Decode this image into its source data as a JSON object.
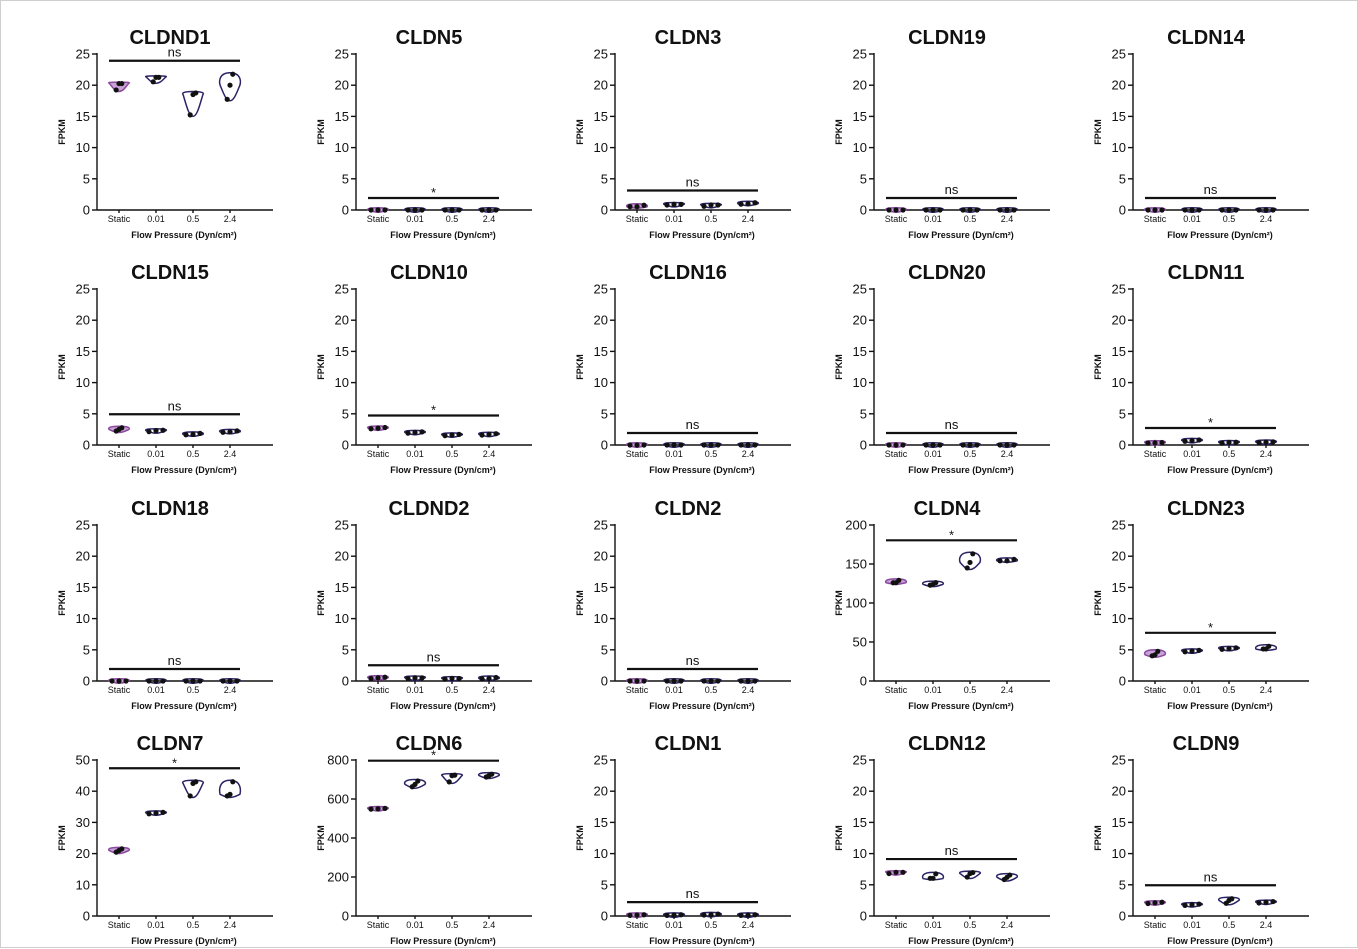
{
  "chart_data": [
    {
      "type": "violin",
      "title": "CLDND1",
      "ylabel": "FPKM",
      "xlabel": "Flow Pressure (Dyn/cm²)",
      "categories": [
        "Static",
        "0.01",
        "0.5",
        "2.4"
      ],
      "ylim": [
        0,
        25
      ],
      "yticks": [
        0,
        5,
        10,
        15,
        20,
        25
      ],
      "significance": "ns",
      "values": [
        [
          19,
          20.5,
          20.5
        ],
        [
          20.3,
          21.5,
          21.5
        ],
        [
          15,
          18.5,
          19
        ],
        [
          17.5,
          20,
          22
        ]
      ]
    },
    {
      "type": "violin",
      "title": "CLDN5",
      "ylabel": "FPKM",
      "xlabel": "Flow Pressure (Dyn/cm²)",
      "categories": [
        "Static",
        "0.01",
        "0.5",
        "2.4"
      ],
      "ylim": [
        0,
        25
      ],
      "yticks": [
        0,
        5,
        10,
        15,
        20,
        25
      ],
      "significance": "*",
      "values": [
        [
          0,
          0,
          0
        ],
        [
          0,
          0,
          0
        ],
        [
          0,
          0,
          0
        ],
        [
          0,
          0,
          0
        ]
      ]
    },
    {
      "type": "violin",
      "title": "CLDN3",
      "ylabel": "FPKM",
      "xlabel": "Flow Pressure (Dyn/cm²)",
      "categories": [
        "Static",
        "0.01",
        "0.5",
        "2.4"
      ],
      "ylim": [
        0,
        25
      ],
      "yticks": [
        0,
        5,
        10,
        15,
        20,
        25
      ],
      "significance": "ns",
      "values": [
        [
          0.3,
          0.5,
          1
        ],
        [
          0.8,
          0.9,
          0.9
        ],
        [
          0.6,
          0.8,
          0.8
        ],
        [
          0.9,
          1,
          1.2
        ]
      ]
    },
    {
      "type": "violin",
      "title": "CLDN19",
      "ylabel": "FPKM",
      "xlabel": "Flow Pressure (Dyn/cm²)",
      "categories": [
        "Static",
        "0.01",
        "0.5",
        "2.4"
      ],
      "ylim": [
        0,
        25
      ],
      "yticks": [
        0,
        5,
        10,
        15,
        20,
        25
      ],
      "significance": "ns",
      "values": [
        [
          0,
          0,
          0
        ],
        [
          0,
          0,
          0
        ],
        [
          0,
          0,
          0
        ],
        [
          0,
          0,
          0
        ]
      ]
    },
    {
      "type": "violin",
      "title": "CLDN14",
      "ylabel": "FPKM",
      "xlabel": "Flow Pressure (Dyn/cm²)",
      "categories": [
        "Static",
        "0.01",
        "0.5",
        "2.4"
      ],
      "ylim": [
        0,
        25
      ],
      "yticks": [
        0,
        5,
        10,
        15,
        20,
        25
      ],
      "significance": "ns",
      "values": [
        [
          0,
          0,
          0
        ],
        [
          0,
          0,
          0
        ],
        [
          0,
          0,
          0
        ],
        [
          0,
          0,
          0
        ]
      ]
    },
    {
      "type": "violin",
      "title": "CLDN15",
      "ylabel": "FPKM",
      "xlabel": "Flow Pressure (Dyn/cm²)",
      "categories": [
        "Static",
        "0.01",
        "0.5",
        "2.4"
      ],
      "ylim": [
        0,
        25
      ],
      "yticks": [
        0,
        5,
        10,
        15,
        20,
        25
      ],
      "significance": "ns",
      "values": [
        [
          2,
          2.5,
          3
        ],
        [
          2.1,
          2.3,
          2.4
        ],
        [
          1.6,
          1.7,
          1.9
        ],
        [
          1.9,
          2.1,
          2.4
        ]
      ]
    },
    {
      "type": "violin",
      "title": "CLDN10",
      "ylabel": "FPKM",
      "xlabel": "Flow Pressure (Dyn/cm²)",
      "categories": [
        "Static",
        "0.01",
        "0.5",
        "2.4"
      ],
      "ylim": [
        0,
        25
      ],
      "yticks": [
        0,
        5,
        10,
        15,
        20,
        25
      ],
      "significance": "*",
      "values": [
        [
          2.6,
          2.7,
          2.8
        ],
        [
          1.9,
          2,
          2.1
        ],
        [
          1.5,
          1.6,
          1.7
        ],
        [
          1.5,
          1.7,
          1.9
        ]
      ]
    },
    {
      "type": "violin",
      "title": "CLDN16",
      "ylabel": "FPKM",
      "xlabel": "Flow Pressure (Dyn/cm²)",
      "categories": [
        "Static",
        "0.01",
        "0.5",
        "2.4"
      ],
      "ylim": [
        0,
        25
      ],
      "yticks": [
        0,
        5,
        10,
        15,
        20,
        25
      ],
      "significance": "ns",
      "values": [
        [
          0,
          0,
          0
        ],
        [
          0,
          0,
          0
        ],
        [
          0,
          0,
          0
        ],
        [
          0,
          0,
          0
        ]
      ]
    },
    {
      "type": "violin",
      "title": "CLDN20",
      "ylabel": "FPKM",
      "xlabel": "Flow Pressure (Dyn/cm²)",
      "categories": [
        "Static",
        "0.01",
        "0.5",
        "2.4"
      ],
      "ylim": [
        0,
        25
      ],
      "yticks": [
        0,
        5,
        10,
        15,
        20,
        25
      ],
      "significance": "ns",
      "values": [
        [
          0,
          0,
          0
        ],
        [
          0,
          0,
          0
        ],
        [
          0,
          0,
          0
        ],
        [
          0,
          0,
          0
        ]
      ]
    },
    {
      "type": "violin",
      "title": "CLDN11",
      "ylabel": "FPKM",
      "xlabel": "Flow Pressure (Dyn/cm²)",
      "categories": [
        "Static",
        "0.01",
        "0.5",
        "2.4"
      ],
      "ylim": [
        0,
        25
      ],
      "yticks": [
        0,
        5,
        10,
        15,
        20,
        25
      ],
      "significance": "*",
      "values": [
        [
          0.3,
          0.35,
          0.4
        ],
        [
          0.6,
          0.7,
          0.8
        ],
        [
          0.3,
          0.4,
          0.45
        ],
        [
          0.4,
          0.45,
          0.5
        ]
      ]
    },
    {
      "type": "violin",
      "title": "CLDN18",
      "ylabel": "FPKM",
      "xlabel": "Flow Pressure (Dyn/cm²)",
      "categories": [
        "Static",
        "0.01",
        "0.5",
        "2.4"
      ],
      "ylim": [
        0,
        25
      ],
      "yticks": [
        0,
        5,
        10,
        15,
        20,
        25
      ],
      "significance": "ns",
      "values": [
        [
          0,
          0,
          0
        ],
        [
          0,
          0,
          0
        ],
        [
          0,
          0,
          0
        ],
        [
          0,
          0,
          0
        ]
      ]
    },
    {
      "type": "violin",
      "title": "CLDND2",
      "ylabel": "FPKM",
      "xlabel": "Flow Pressure (Dyn/cm²)",
      "categories": [
        "Static",
        "0.01",
        "0.5",
        "2.4"
      ],
      "ylim": [
        0,
        25
      ],
      "yticks": [
        0,
        5,
        10,
        15,
        20,
        25
      ],
      "significance": "ns",
      "values": [
        [
          0.4,
          0.5,
          0.6
        ],
        [
          0.4,
          0.5,
          0.5
        ],
        [
          0.3,
          0.4,
          0.4
        ],
        [
          0.3,
          0.4,
          0.6
        ]
      ]
    },
    {
      "type": "violin",
      "title": "CLDN2",
      "ylabel": "FPKM",
      "xlabel": "Flow Pressure (Dyn/cm²)",
      "categories": [
        "Static",
        "0.01",
        "0.5",
        "2.4"
      ],
      "ylim": [
        0,
        25
      ],
      "yticks": [
        0,
        5,
        10,
        15,
        20,
        25
      ],
      "significance": "ns",
      "values": [
        [
          0,
          0,
          0
        ],
        [
          0,
          0,
          0
        ],
        [
          0,
          0,
          0
        ],
        [
          0,
          0,
          0
        ]
      ]
    },
    {
      "type": "violin",
      "title": "CLDN4",
      "ylabel": "FPKM",
      "xlabel": "Flow Pressure (Dyn/cm²)",
      "categories": [
        "Static",
        "0.01",
        "0.5",
        "2.4"
      ],
      "ylim": [
        0,
        200
      ],
      "yticks": [
        0,
        50,
        100,
        150,
        200
      ],
      "significance": "*",
      "values": [
        [
          124,
          126,
          131
        ],
        [
          121,
          124,
          128
        ],
        [
          143,
          152,
          165
        ],
        [
          153,
          154,
          157
        ]
      ]
    },
    {
      "type": "violin",
      "title": "CLDN23",
      "ylabel": "FPKM",
      "xlabel": "Flow Pressure (Dyn/cm²)",
      "categories": [
        "Static",
        "0.01",
        "0.5",
        "2.4"
      ],
      "ylim": [
        0,
        25
      ],
      "yticks": [
        0,
        5,
        10,
        15,
        20,
        25
      ],
      "significance": "*",
      "values": [
        [
          3.8,
          4.2,
          5
        ],
        [
          4.6,
          4.8,
          5
        ],
        [
          5,
          5.2,
          5.4
        ],
        [
          4.9,
          5.1,
          5.8
        ]
      ]
    },
    {
      "type": "violin",
      "title": "CLDN7",
      "ylabel": "FPKM",
      "xlabel": "Flow Pressure (Dyn/cm²)",
      "categories": [
        "Static",
        "0.01",
        "0.5",
        "2.4"
      ],
      "ylim": [
        0,
        50
      ],
      "yticks": [
        0,
        10,
        20,
        30,
        40,
        50
      ],
      "significance": "*",
      "values": [
        [
          20,
          21,
          22
        ],
        [
          32.6,
          33,
          33.4
        ],
        [
          38,
          42.5,
          43.5
        ],
        [
          38,
          39,
          43.5
        ]
      ]
    },
    {
      "type": "violin",
      "title": "CLDN6",
      "ylabel": "FPKM",
      "xlabel": "Flow Pressure (Dyn/cm²)",
      "categories": [
        "Static",
        "0.01",
        "0.5",
        "2.4"
      ],
      "ylim": [
        0,
        800
      ],
      "yticks": [
        0,
        200,
        400,
        600,
        800
      ],
      "significance": "*",
      "values": [
        [
          548,
          550,
          552
        ],
        [
          655,
          675,
          700
        ],
        [
          680,
          720,
          730
        ],
        [
          705,
          720,
          735
        ]
      ]
    },
    {
      "type": "violin",
      "title": "CLDN1",
      "ylabel": "FPKM",
      "xlabel": "Flow Pressure (Dyn/cm²)",
      "categories": [
        "Static",
        "0.01",
        "0.5",
        "2.4"
      ],
      "ylim": [
        0,
        25
      ],
      "yticks": [
        0,
        5,
        10,
        15,
        20,
        25
      ],
      "significance": "ns",
      "values": [
        [
          0.1,
          0.15,
          0.2
        ],
        [
          0.1,
          0.15,
          0.2
        ],
        [
          0.15,
          0.2,
          0.3
        ],
        [
          0.1,
          0.15,
          0.2
        ]
      ]
    },
    {
      "type": "violin",
      "title": "CLDN12",
      "ylabel": "FPKM",
      "xlabel": "Flow Pressure (Dyn/cm²)",
      "categories": [
        "Static",
        "0.01",
        "0.5",
        "2.4"
      ],
      "ylim": [
        0,
        25
      ],
      "yticks": [
        0,
        5,
        10,
        15,
        20,
        25
      ],
      "significance": "ns",
      "values": [
        [
          6.8,
          7,
          7
        ],
        [
          5.8,
          6,
          7
        ],
        [
          6,
          6.8,
          7.2
        ],
        [
          5.6,
          6.2,
          6.8
        ]
      ]
    },
    {
      "type": "violin",
      "title": "CLDN9",
      "ylabel": "FPKM",
      "xlabel": "Flow Pressure (Dyn/cm²)",
      "categories": [
        "Static",
        "0.01",
        "0.5",
        "2.4"
      ],
      "ylim": [
        0,
        25
      ],
      "yticks": [
        0,
        5,
        10,
        15,
        20,
        25
      ],
      "significance": "ns",
      "values": [
        [
          2,
          2.1,
          2.2
        ],
        [
          1.7,
          1.8,
          1.9
        ],
        [
          1.8,
          2.5,
          3
        ],
        [
          2,
          2.2,
          2.4
        ]
      ]
    }
  ],
  "colors": {
    "static_fill": "#c9a2d8",
    "static_stroke": "#8a4a9e",
    "violin_stroke": "#2a2466",
    "point": "#111111",
    "axis": "#111111"
  }
}
